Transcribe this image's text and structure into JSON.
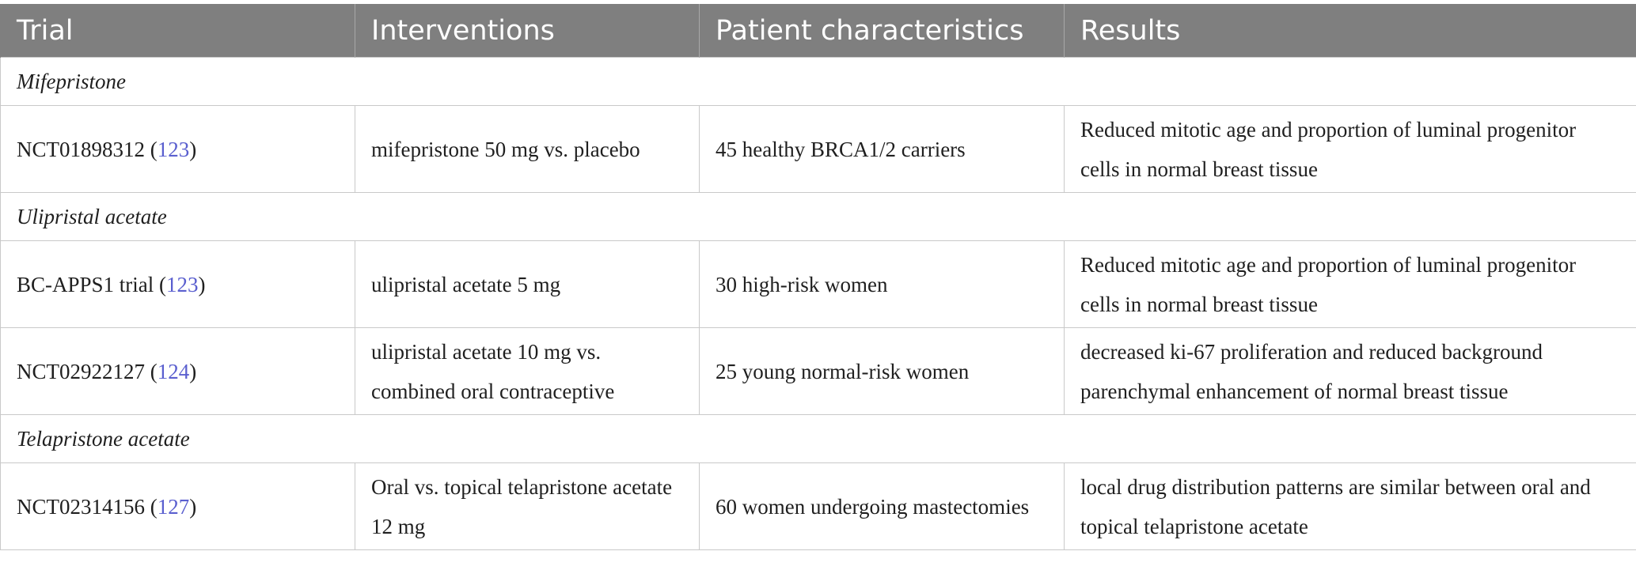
{
  "table": {
    "headers": [
      "Trial",
      "Interventions",
      "Patient characteristics",
      "Results"
    ],
    "groups": [
      {
        "name": "Mifepristone",
        "rows": [
          {
            "trial": "NCT01898312",
            "ref": "123",
            "interventions": "mifepristone 50 mg vs. placebo",
            "patients": "45 healthy BRCA1/2 carriers",
            "results": "Reduced mitotic age and proportion of luminal progenitor cells in normal breast tissue"
          }
        ]
      },
      {
        "name": "Ulipristal acetate",
        "rows": [
          {
            "trial": "BC-APPS1 trial",
            "ref": "123",
            "interventions": "ulipristal acetate 5 mg",
            "patients": "30 high-risk women",
            "results": "Reduced mitotic age and proportion of luminal progenitor cells in normal breast tissue"
          },
          {
            "trial": "NCT02922127",
            "ref": "124",
            "interventions": "ulipristal acetate 10 mg vs. combined oral contraceptive",
            "patients": "25 young normal-risk women",
            "results": "decreased ki-67 proliferation and reduced background parenchymal enhancement of normal breast tissue"
          }
        ]
      },
      {
        "name": "Telapristone acetate",
        "rows": [
          {
            "trial": "NCT02314156",
            "ref": "127",
            "interventions": "Oral vs. topical telapristone acetate 12 mg",
            "patients": "60 women undergoing mastectomies",
            "results": "local drug distribution patterns are similar between oral and topical telapristone acetate"
          }
        ]
      }
    ]
  }
}
